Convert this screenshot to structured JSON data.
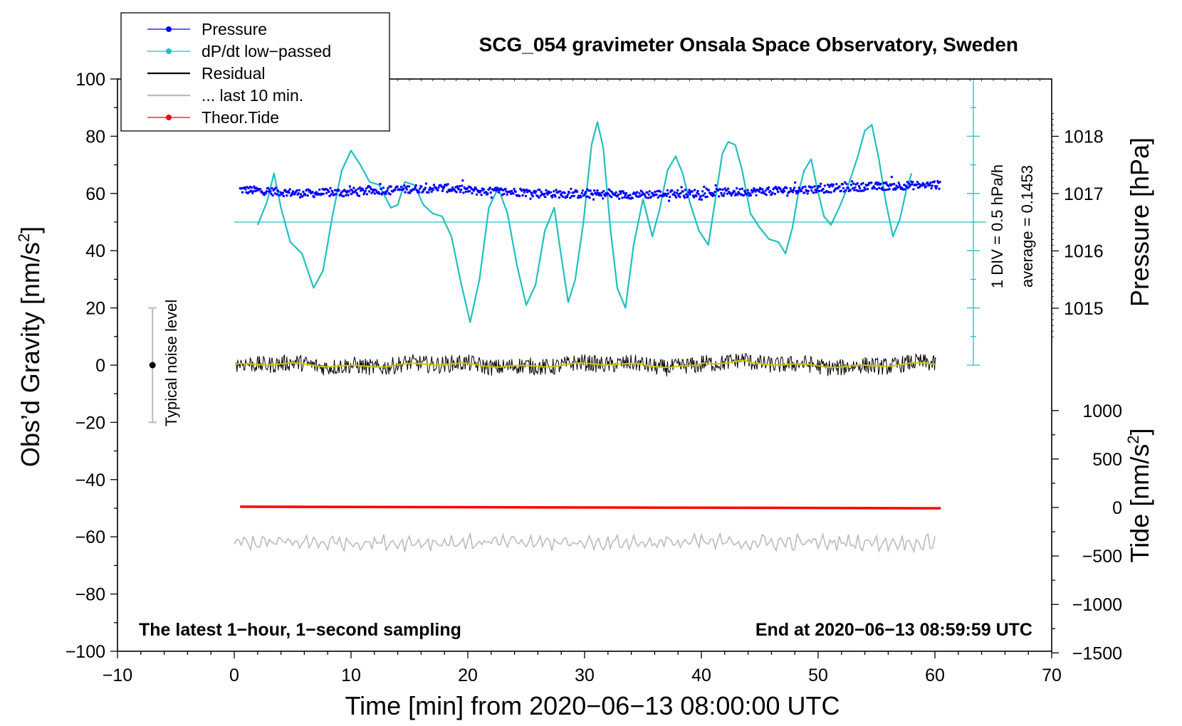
{
  "chart_data": {
    "type": "line",
    "title": "SCG_054 gravimeter Onsala Space Observatory, Sweden",
    "xlabel": "Time [min] from 2020−06−13 08:00:00 UTC",
    "xlim": [
      -10,
      70
    ],
    "xticks": [
      "−10",
      "0",
      "10",
      "20",
      "30",
      "40",
      "50",
      "60",
      "70"
    ],
    "y_left": {
      "label": "Obs’d Gravity [nm/s",
      "label_sup": "2",
      "label_close": "]",
      "ylim": [
        -100,
        100
      ],
      "ticks": [
        "100",
        "80",
        "60",
        "40",
        "20",
        "0",
        "−20",
        "−40",
        "−60",
        "−80",
        "−100"
      ]
    },
    "y_right_pressure": {
      "label": "Pressure [hPa]",
      "ticks": [
        "1018",
        "1017",
        "1016",
        "1015"
      ],
      "tick_values": [
        1018,
        1017,
        1016,
        1015
      ]
    },
    "y_right_tide": {
      "label": "Tide [nm/s",
      "label_sup": "2",
      "label_close": "]",
      "ticks": [
        "1000",
        "500",
        "0",
        "−500",
        "−1000",
        "−1500"
      ],
      "tick_values": [
        1000,
        500,
        0,
        -500,
        -1000,
        -1500
      ]
    },
    "dpdt_scale": {
      "div_label": "1 DIV = 0.5 hPa/h",
      "average_label": "average = 0.1453",
      "baseline_gravity": 50
    },
    "noise_bar": {
      "label": "Typical noise level",
      "x": -7,
      "center": 0,
      "low": -20,
      "high": 20
    },
    "legend": [
      {
        "name": "Pressure",
        "color": "#0000ff",
        "marker": true
      },
      {
        "name": "dP/dt low−passed",
        "color": "#20c0c0",
        "marker": true
      },
      {
        "name": "Residual",
        "color": "#000000",
        "marker": false
      },
      {
        "name": "... last 10 min.",
        "color": "#bbbbbb",
        "marker": false
      },
      {
        "name": "Theor.Tide",
        "color": "#ff0000",
        "marker": true
      }
    ],
    "annotations": {
      "bottom_left": "The latest 1−hour, 1−second sampling",
      "bottom_right": "End at 2020−06−13 08:59:59 UTC"
    },
    "series": [
      {
        "name": "dP/dt low-passed",
        "color": "#20c0c0",
        "axis": "gravity",
        "x": [
          2,
          2.8,
          3.4,
          4,
          4.8,
          5.8,
          6.8,
          7.6,
          8.4,
          9.2,
          10,
          10.8,
          11.6,
          12.4,
          13.4,
          14,
          14.6,
          15.4,
          16.2,
          17,
          17.8,
          18.6,
          19.4,
          20.2,
          21,
          21.8,
          22.6,
          23.4,
          24.2,
          25,
          25.8,
          26.6,
          27.4,
          28,
          28.6,
          29.2,
          29.9,
          30.6,
          31.1,
          31.6,
          32.2,
          32.8,
          33.5,
          34.2,
          35,
          35.8,
          36.4,
          37.1,
          37.8,
          38.4,
          39,
          39.8,
          40.6,
          41.2,
          41.8,
          42.3,
          42.9,
          43.5,
          44.2,
          45,
          45.8,
          46.6,
          47.2,
          47.8,
          48.3,
          48.8,
          49.4,
          49.9,
          50.5,
          51.1,
          51.8,
          52.6,
          53.4,
          54,
          54.6,
          55.2,
          55.8,
          56.4,
          57,
          57.6,
          58
        ],
        "y": [
          49,
          57,
          67,
          55,
          43,
          39,
          27,
          33,
          52,
          68,
          75,
          70,
          64,
          63,
          55,
          56,
          64,
          63,
          56,
          53,
          52,
          45,
          29,
          15,
          30,
          55,
          62,
          53,
          35,
          21,
          28,
          47,
          55,
          38,
          22,
          30,
          50,
          77,
          85,
          76,
          48,
          27,
          20,
          42,
          58,
          45,
          54,
          68,
          73,
          67,
          57,
          47,
          42,
          58,
          74,
          78,
          77,
          68,
          53,
          48,
          44,
          43,
          39,
          48,
          60,
          68,
          72,
          62,
          52,
          49,
          55,
          63,
          73,
          82,
          84,
          72,
          57,
          45,
          51,
          62,
          67
        ]
      },
      {
        "name": "Pressure",
        "color": "#0000ff",
        "axis": "pressure",
        "x": [
          0.5,
          3,
          6,
          9,
          12,
          15,
          18,
          21,
          24,
          27,
          30,
          33,
          36,
          39,
          42,
          45,
          48,
          51,
          54,
          57,
          60
        ],
        "y": [
          1017.07,
          1017.04,
          1017.0,
          1017.02,
          1017.05,
          1017.08,
          1017.1,
          1017.04,
          1017.03,
          1017.0,
          1016.99,
          1016.98,
          1016.99,
          1017.0,
          1017.02,
          1017.04,
          1017.06,
          1017.09,
          1017.12,
          1017.14,
          1017.15
        ]
      },
      {
        "name": "Residual",
        "color": "#000000",
        "axis": "gravity",
        "x": [
          0,
          60
        ],
        "y_range": [
          -5,
          4
        ]
      },
      {
        "name": "... last 10 min.",
        "color": "#bbbbbb",
        "axis": "gravity",
        "x": [
          0,
          60
        ],
        "y_center": -62,
        "y_range": [
          -66,
          -58
        ]
      },
      {
        "name": "Theor.Tide",
        "color": "#ff0000",
        "axis": "tide",
        "x": [
          0.5,
          17.5,
          31,
          46.5,
          60.5
        ],
        "y": [
          8,
          4,
          0,
          -4,
          -8
        ]
      }
    ]
  }
}
